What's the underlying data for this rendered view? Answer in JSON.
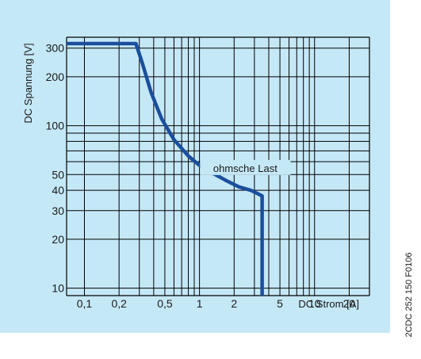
{
  "chart_data": {
    "type": "line",
    "xlabel": "DC Strom [A]",
    "ylabel": "DC Spannung [V]",
    "x_scale": "log",
    "y_scale": "log",
    "xlim": [
      0.07,
      30
    ],
    "ylim": [
      9,
      350
    ],
    "x_tick_labels": [
      {
        "value": 0.1,
        "label": "0,1"
      },
      {
        "value": 0.2,
        "label": "0,2"
      },
      {
        "value": 0.5,
        "label": "0,5"
      },
      {
        "value": 1,
        "label": "1"
      },
      {
        "value": 2,
        "label": "2"
      },
      {
        "value": 5,
        "label": "5"
      },
      {
        "value": 10,
        "label": "10"
      },
      {
        "value": 20,
        "label": "20"
      }
    ],
    "y_tick_labels": [
      {
        "value": 10,
        "label": "10"
      },
      {
        "value": 20,
        "label": "20"
      },
      {
        "value": 30,
        "label": "30"
      },
      {
        "value": 40,
        "label": "40"
      },
      {
        "value": 50,
        "label": "50"
      },
      {
        "value": 100,
        "label": "100"
      },
      {
        "value": 200,
        "label": "200"
      },
      {
        "value": 300,
        "label": "300"
      }
    ],
    "x_gridlines": [
      0.1,
      0.2,
      0.3,
      0.4,
      0.5,
      0.6,
      0.7,
      0.8,
      0.9,
      1,
      2,
      3,
      4,
      5,
      6,
      7,
      8,
      9,
      10,
      20
    ],
    "y_gridlines": [
      10,
      20,
      30,
      40,
      50,
      60,
      70,
      80,
      90,
      100,
      200,
      300
    ],
    "grid": true,
    "series": [
      {
        "name": "ohmsche Last",
        "color": "#1b4f9c",
        "x": [
          0.07,
          0.28,
          0.32,
          0.38,
          0.47,
          0.6,
          0.8,
          1.0,
          1.3,
          1.7,
          2.2,
          2.8,
          3.5,
          3.5
        ],
        "y": [
          320,
          320,
          240,
          160,
          110,
          82,
          65,
          57,
          51,
          46,
          42,
          40,
          37,
          9
        ]
      }
    ],
    "annotations": [
      {
        "text": "ohmsche Last",
        "x": 2.5,
        "y": 55
      }
    ],
    "colors": {
      "background": "#c5e8f7",
      "grid": "#000000",
      "curve": "#1b4f9c"
    }
  },
  "document_code": "2CDC 252 150 F0106"
}
